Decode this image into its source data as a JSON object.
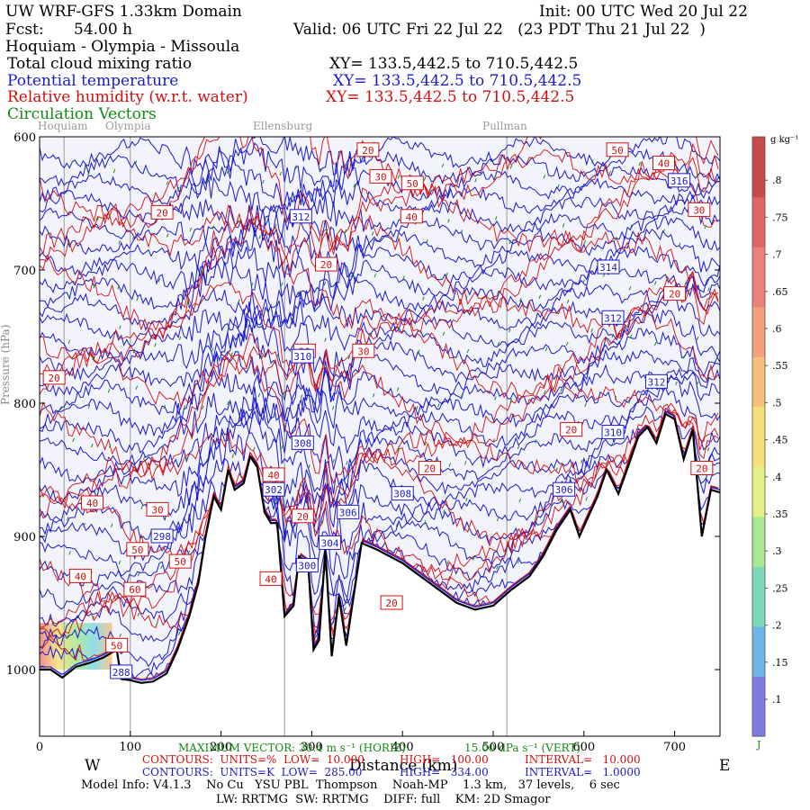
{
  "header": {
    "model_title": "UW WRF-GFS 1.33km Domain",
    "init": "Init: 00 UTC Wed 20 Jul 22",
    "fcst_label": "Fcst:",
    "fcst_value": "54.00 h",
    "valid": "Valid: 06 UTC Fri 22 Jul 22   (23 PDT Thu 21 Jul 22  )",
    "route": "Hoquiam - Olympia - Missoula",
    "fields": [
      {
        "label": "Total cloud mixing ratio",
        "xy": "XY= 133.5,442.5 to 710.5,442.5",
        "color": "#000000"
      },
      {
        "label": "Potential temperature",
        "xy": "XY= 133.5,442.5 to 710.5,442.5",
        "color": "#1a1acc"
      },
      {
        "label": "Relative humidity (w.r.t. water)",
        "xy": "XY= 133.5,442.5 to 710.5,442.5",
        "color": "#d01010"
      },
      {
        "label": "Circulation Vectors",
        "xy": "",
        "color": "#138a13"
      }
    ]
  },
  "chart_data": {
    "type": "contour",
    "title": "Hoquiam - Olympia - Missoula",
    "xlabel": "Distance (km)",
    "ylabel": "Pressure (hPa)",
    "xlim": [
      0,
      750
    ],
    "ylim": [
      1050,
      600
    ],
    "x_ticks": [
      0,
      100,
      200,
      300,
      400,
      500,
      600,
      700
    ],
    "y_ticks": [
      600,
      700,
      800,
      900,
      1000
    ],
    "y_tick_labels": [
      "600",
      "700",
      "800",
      "900",
      "1000"
    ],
    "left_label": "W",
    "right_label": "E",
    "towns": [
      {
        "name": "Hoquiam",
        "x": 27
      },
      {
        "name": "Olympia",
        "x": 100
      },
      {
        "name": "Ellensburg",
        "x": 270
      },
      {
        "name": "Pullman",
        "x": 515
      }
    ],
    "terrain_profile": [
      [
        0,
        1000
      ],
      [
        12,
        1000
      ],
      [
        25,
        1006
      ],
      [
        40,
        998
      ],
      [
        55,
        995
      ],
      [
        70,
        991
      ],
      [
        85,
        985
      ],
      [
        90,
        1007
      ],
      [
        100,
        1008
      ],
      [
        112,
        1010
      ],
      [
        125,
        1009
      ],
      [
        140,
        1003
      ],
      [
        152,
        985
      ],
      [
        165,
        960
      ],
      [
        175,
        935
      ],
      [
        183,
        900
      ],
      [
        192,
        870
      ],
      [
        200,
        880
      ],
      [
        208,
        850
      ],
      [
        215,
        865
      ],
      [
        225,
        860
      ],
      [
        232,
        840
      ],
      [
        240,
        848
      ],
      [
        248,
        882
      ],
      [
        255,
        890
      ],
      [
        262,
        890
      ],
      [
        270,
        960
      ],
      [
        280,
        952
      ],
      [
        286,
        915
      ],
      [
        296,
        920
      ],
      [
        302,
        985
      ],
      [
        308,
        978
      ],
      [
        315,
        910
      ],
      [
        322,
        990
      ],
      [
        330,
        945
      ],
      [
        338,
        982
      ],
      [
        345,
        950
      ],
      [
        355,
        905
      ],
      [
        372,
        910
      ],
      [
        400,
        920
      ],
      [
        430,
        935
      ],
      [
        460,
        950
      ],
      [
        480,
        955
      ],
      [
        500,
        952
      ],
      [
        520,
        940
      ],
      [
        540,
        930
      ],
      [
        555,
        915
      ],
      [
        570,
        895
      ],
      [
        585,
        880
      ],
      [
        595,
        900
      ],
      [
        605,
        885
      ],
      [
        615,
        870
      ],
      [
        625,
        850
      ],
      [
        638,
        868
      ],
      [
        650,
        845
      ],
      [
        660,
        825
      ],
      [
        670,
        818
      ],
      [
        680,
        830
      ],
      [
        690,
        808
      ],
      [
        700,
        812
      ],
      [
        710,
        842
      ],
      [
        720,
        820
      ],
      [
        730,
        900
      ],
      [
        740,
        865
      ],
      [
        750,
        867
      ]
    ],
    "potential_temperature": {
      "units": "K",
      "low": 285.0,
      "high": 334.0,
      "interval": 1.0,
      "labels": [
        {
          "value": "316",
          "x": 705,
          "y": 633
        },
        {
          "value": "314",
          "x": 627,
          "y": 698
        },
        {
          "value": "312",
          "x": 288,
          "y": 660
        },
        {
          "value": "312",
          "x": 632,
          "y": 736
        },
        {
          "value": "312",
          "x": 680,
          "y": 784
        },
        {
          "value": "310",
          "x": 290,
          "y": 765
        },
        {
          "value": "310",
          "x": 632,
          "y": 822
        },
        {
          "value": "308",
          "x": 290,
          "y": 830
        },
        {
          "value": "308",
          "x": 400,
          "y": 868
        },
        {
          "value": "306",
          "x": 340,
          "y": 882
        },
        {
          "value": "306",
          "x": 578,
          "y": 865
        },
        {
          "value": "304",
          "x": 320,
          "y": 905
        },
        {
          "value": "302",
          "x": 258,
          "y": 865
        },
        {
          "value": "300",
          "x": 295,
          "y": 922
        },
        {
          "value": "298",
          "x": 135,
          "y": 900
        },
        {
          "value": "288",
          "x": 90,
          "y": 1002
        }
      ]
    },
    "relative_humidity": {
      "units": "%",
      "low": 10.0,
      "high": 100.0,
      "interval": 10.0,
      "labels": [
        {
          "value": "20",
          "x": 362,
          "y": 610
        },
        {
          "value": "30",
          "x": 376,
          "y": 630
        },
        {
          "value": "50",
          "x": 411,
          "y": 635
        },
        {
          "value": "40",
          "x": 410,
          "y": 660
        },
        {
          "value": "50",
          "x": 637,
          "y": 610
        },
        {
          "value": "40",
          "x": 688,
          "y": 620
        },
        {
          "value": "30",
          "x": 727,
          "y": 655
        },
        {
          "value": "20",
          "x": 135,
          "y": 657
        },
        {
          "value": "20",
          "x": 316,
          "y": 696
        },
        {
          "value": "20",
          "x": 700,
          "y": 718
        },
        {
          "value": "30",
          "x": 357,
          "y": 761
        },
        {
          "value": "20",
          "x": 292,
          "y": 761
        },
        {
          "value": "20",
          "x": 16,
          "y": 781
        },
        {
          "value": "20",
          "x": 586,
          "y": 820
        },
        {
          "value": "20",
          "x": 430,
          "y": 849
        },
        {
          "value": "20",
          "x": 730,
          "y": 849
        },
        {
          "value": "40",
          "x": 258,
          "y": 854
        },
        {
          "value": "20",
          "x": 290,
          "y": 885
        },
        {
          "value": "40",
          "x": 58,
          "y": 875
        },
        {
          "value": "30",
          "x": 130,
          "y": 880
        },
        {
          "value": "50",
          "x": 108,
          "y": 910
        },
        {
          "value": "50",
          "x": 155,
          "y": 919
        },
        {
          "value": "40",
          "x": 45,
          "y": 930
        },
        {
          "value": "60",
          "x": 105,
          "y": 940
        },
        {
          "value": "40",
          "x": 255,
          "y": 932
        },
        {
          "value": "20",
          "x": 388,
          "y": 950
        },
        {
          "value": "50",
          "x": 85,
          "y": 982
        }
      ]
    },
    "cloud_mixing_ratio": {
      "units": "g kg-1",
      "colorbar_ticks": [
        ".1",
        ".15",
        ".2",
        ".25",
        ".3",
        ".35",
        ".4",
        ".45",
        ".5",
        ".55",
        ".6",
        ".65",
        ".7",
        ".75",
        ".8"
      ],
      "colorbar_extremes": [
        "g kg⁻¹",
        "J"
      ],
      "cloud_region": {
        "x": [
          0,
          80
        ],
        "p": [
          965,
          1000
        ]
      }
    },
    "vectors": {
      "maximum_label": "MAXIMUM VECTOR: 30.4 m s⁻¹ (HORIZ)",
      "vertical_label": "15.00 dPa s⁻¹ (VERT)"
    }
  },
  "footer": {
    "rh_line": {
      "contours": "CONTOURS:  UNITS=%  LOW=  10.000",
      "high": "HIGH=   100.00",
      "interval": "INTERVAL=   10.000"
    },
    "pt_line": {
      "contours": "CONTOURS:  UNITS=K  LOW=  285.00",
      "high": "HIGH=   334.00",
      "interval": "INTERVAL=   1.0000"
    },
    "model_info": "Model Info: V4.1.3    No Cu   YSU PBL  Thompson    Noah-MP    1.3 km,   37 levels,    6 sec",
    "physics": "LW: RRTMG  SW: RRTMG    DIFF: full    KM: 2D Smagor"
  },
  "colors": {
    "cloud_cmap": [
      "#7b7be0",
      "#6fb4e8",
      "#7fd8b8",
      "#a8e890",
      "#e4ef88",
      "#f7e07a",
      "#f7c07a",
      "#f4a07a",
      "#ee807a",
      "#e06464",
      "#c84a4a"
    ],
    "background": "#ffffff",
    "sky_fill": "#f3f3fb",
    "pt": "#1a1acc",
    "rh": "#d01010",
    "vec": "#138a13",
    "terrain": "#000000"
  }
}
